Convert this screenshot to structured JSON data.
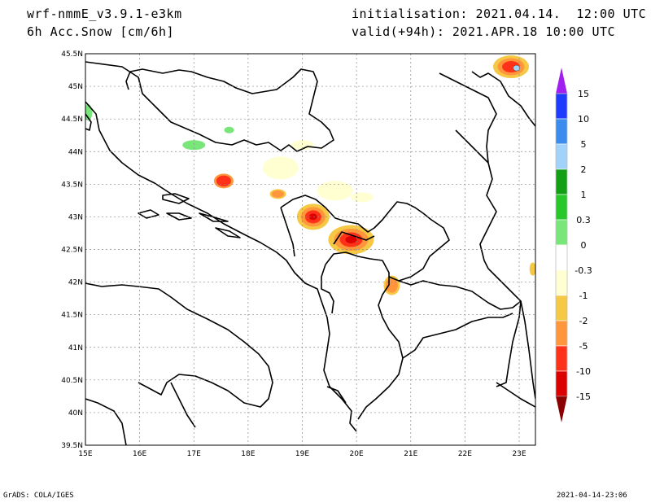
{
  "header": {
    "model": "wrf-nmmE_v3.9.1-e3km",
    "field": "6h Acc.Snow [cm/6h]",
    "init": "initialisation: 2021.04.14.  12:00 UTC",
    "valid": "valid(+94h): 2021.APR.18 10:00 UTC"
  },
  "footer": {
    "left": "GrADS: COLA/IGES",
    "right": "2021-04-14-23:06"
  },
  "map": {
    "lon_range": [
      15,
      23.3
    ],
    "lat_range": [
      39.5,
      45.5
    ],
    "lon_ticks": [
      "15E",
      "16E",
      "17E",
      "18E",
      "19E",
      "20E",
      "21E",
      "22E",
      "23E"
    ],
    "lat_ticks": [
      "45.5N",
      "45N",
      "44.5N",
      "44N",
      "43.5N",
      "43N",
      "42.5N",
      "42N",
      "41.5N",
      "41N",
      "40.5N",
      "40N",
      "39.5N"
    ],
    "grid": true
  },
  "colorbar": {
    "labels": [
      "15",
      "10",
      "5",
      "2",
      "1",
      "0.3",
      "0",
      "-0.3",
      "-1",
      "-2",
      "-5",
      "-10",
      "-15"
    ],
    "colors": [
      "#1e3cff",
      "#3c8cf0",
      "#a0d2fa",
      "#14a014",
      "#28c828",
      "#78e678",
      "#ffffff",
      "#ffffd2",
      "#f5c846",
      "#ff963c",
      "#ff3219",
      "#dc0000",
      "#a50000"
    ],
    "top_color": "#a020f0",
    "bottom_color": "#8b0000"
  },
  "precip_colors": {
    "light": "#ffffd2",
    "yellow": "#f5c846",
    "orange": "#ff963c",
    "red": "#ff3219",
    "dark": "#dc0000",
    "green": "#78e678",
    "cyan": "#a0d2fa"
  }
}
